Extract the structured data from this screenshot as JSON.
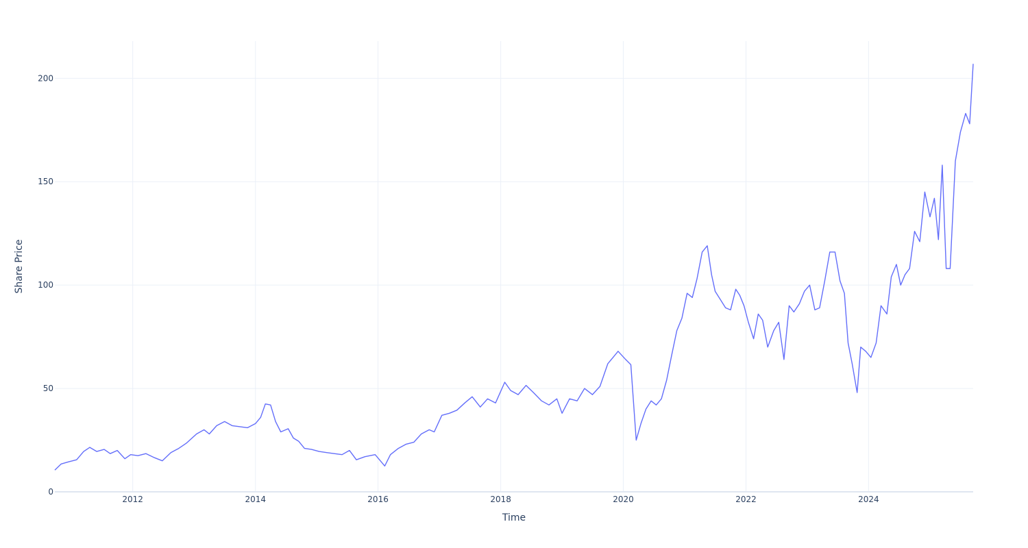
{
  "chart_data": {
    "type": "line",
    "title": "",
    "xlabel": "Time",
    "ylabel": "Share Price",
    "x_tick_labels": [
      "2012",
      "2014",
      "2016",
      "2018",
      "2020",
      "2022",
      "2024"
    ],
    "y_tick_labels": [
      "0",
      "50",
      "100",
      "150",
      "200"
    ],
    "y_ticks": [
      0,
      50,
      100,
      150,
      200
    ],
    "xlim": [
      "2010-09-24",
      "2025-09-15"
    ],
    "ylim": [
      0,
      218
    ],
    "grid": true,
    "legend": "none",
    "colors": {
      "line": "#636efa",
      "grid": "#ebf0f8",
      "text": "#2a3f5f"
    },
    "series": [
      {
        "x": [
          "2010-09-24",
          "2010-11-01",
          "2010-12-15",
          "2011-02-01",
          "2011-03-15",
          "2011-04-20",
          "2011-06-01",
          "2011-07-15",
          "2011-08-20",
          "2011-10-01",
          "2011-11-15",
          "2011-12-20",
          "2012-02-01",
          "2012-03-20",
          "2012-05-10",
          "2012-06-25",
          "2012-08-15",
          "2012-10-01",
          "2012-11-15",
          "2013-01-15",
          "2013-03-01",
          "2013-04-01",
          "2013-05-15",
          "2013-07-01",
          "2013-08-15",
          "2013-10-01",
          "2013-11-15",
          "2014-01-01",
          "2014-02-01",
          "2014-03-01",
          "2014-04-01",
          "2014-05-01",
          "2014-06-01",
          "2014-07-15",
          "2014-08-15",
          "2014-09-15",
          "2014-10-20",
          "2014-12-01",
          "2015-01-15",
          "2015-03-01",
          "2015-04-15",
          "2015-06-01",
          "2015-07-15",
          "2015-08-25",
          "2015-10-15",
          "2015-12-15",
          "2016-02-10",
          "2016-03-15",
          "2016-05-01",
          "2016-06-15",
          "2016-08-01",
          "2016-09-15",
          "2016-11-01",
          "2016-12-01",
          "2017-01-15",
          "2017-03-01",
          "2017-04-15",
          "2017-06-01",
          "2017-07-15",
          "2017-09-01",
          "2017-10-15",
          "2017-12-01",
          "2018-01-25",
          "2018-03-01",
          "2018-04-15",
          "2018-06-01",
          "2018-07-15",
          "2018-09-01",
          "2018-10-15",
          "2018-12-01",
          "2019-01-01",
          "2019-02-15",
          "2019-04-01",
          "2019-05-15",
          "2019-07-01",
          "2019-08-15",
          "2019-10-01",
          "2019-11-01",
          "2019-12-01",
          "2020-01-15",
          "2020-02-15",
          "2020-03-18",
          "2020-04-15",
          "2020-05-15",
          "2020-06-15",
          "2020-07-15",
          "2020-08-15",
          "2020-09-15",
          "2020-10-15",
          "2020-11-15",
          "2020-12-15",
          "2021-01-15",
          "2021-02-15",
          "2021-03-15",
          "2021-04-15",
          "2021-05-15",
          "2021-06-10",
          "2021-07-01",
          "2021-08-01",
          "2021-09-01",
          "2021-10-01",
          "2021-11-01",
          "2021-11-25",
          "2021-12-20",
          "2022-01-15",
          "2022-02-15",
          "2022-03-15",
          "2022-04-10",
          "2022-05-10",
          "2022-06-15",
          "2022-07-15",
          "2022-08-15",
          "2022-09-15",
          "2022-10-13",
          "2022-11-15",
          "2022-12-15",
          "2023-01-15",
          "2023-02-15",
          "2023-03-15",
          "2023-04-15",
          "2023-05-15",
          "2023-06-15",
          "2023-07-15",
          "2023-08-10",
          "2023-09-01",
          "2023-09-25",
          "2023-10-25",
          "2023-11-15",
          "2023-12-15",
          "2024-01-15",
          "2024-02-15",
          "2024-03-15",
          "2024-04-19",
          "2024-05-15",
          "2024-06-15",
          "2024-07-10",
          "2024-08-05",
          "2024-09-01",
          "2024-10-01",
          "2024-11-01",
          "2024-12-01",
          "2025-01-01",
          "2025-01-27",
          "2025-02-20",
          "2025-03-15",
          "2025-04-07",
          "2025-05-01",
          "2025-06-01",
          "2025-07-01",
          "2025-08-01",
          "2025-08-25",
          "2025-09-15"
        ],
        "y": [
          10.5,
          13.5,
          14.5,
          15.5,
          19.5,
          21.5,
          19.5,
          20.5,
          18.5,
          20.0,
          16.0,
          18.0,
          17.5,
          18.5,
          16.5,
          15.0,
          19.0,
          21.0,
          23.5,
          28.0,
          30.0,
          28.0,
          32.0,
          34.0,
          32.0,
          31.5,
          31.0,
          33.0,
          36.0,
          42.5,
          42.0,
          34.0,
          29.0,
          30.5,
          26.0,
          24.5,
          21.0,
          20.5,
          19.5,
          19.0,
          18.5,
          18.0,
          20.0,
          15.5,
          17.0,
          18.0,
          12.5,
          18.0,
          21.0,
          23.0,
          24.0,
          28.0,
          30.0,
          29.0,
          37.0,
          38.0,
          39.5,
          43.0,
          46.0,
          41.0,
          45.0,
          43.0,
          53.0,
          49.0,
          47.0,
          51.5,
          48.0,
          44.0,
          42.0,
          45.0,
          38.0,
          45.0,
          44.0,
          50.0,
          47.0,
          51.0,
          62.0,
          65.0,
          68.0,
          64.0,
          61.5,
          25.0,
          33.0,
          40.0,
          44.0,
          42.0,
          45.0,
          54.0,
          66.0,
          78.0,
          84.0,
          96.0,
          94.0,
          103.0,
          116.0,
          119.0,
          105.0,
          97.0,
          93.0,
          89.0,
          88.0,
          98.0,
          95.0,
          90.0,
          82.0,
          74.0,
          86.0,
          83.0,
          70.0,
          78.0,
          82.0,
          64.0,
          90.0,
          87.0,
          91.0,
          97.0,
          100.0,
          88.0,
          89.0,
          102.0,
          116.0,
          116.0,
          102.0,
          96.0,
          72.0,
          62.0,
          48.0,
          70.0,
          68.0,
          65.0,
          72.0,
          90.0,
          86.0,
          104.0,
          110.0,
          100.0,
          105.0,
          108.0,
          126.0,
          121.0,
          145.0,
          133.0,
          142.0,
          122.0,
          158.0,
          108.0,
          108.0,
          160.0,
          174.0,
          183.0,
          178.0,
          207.0
        ]
      }
    ]
  }
}
